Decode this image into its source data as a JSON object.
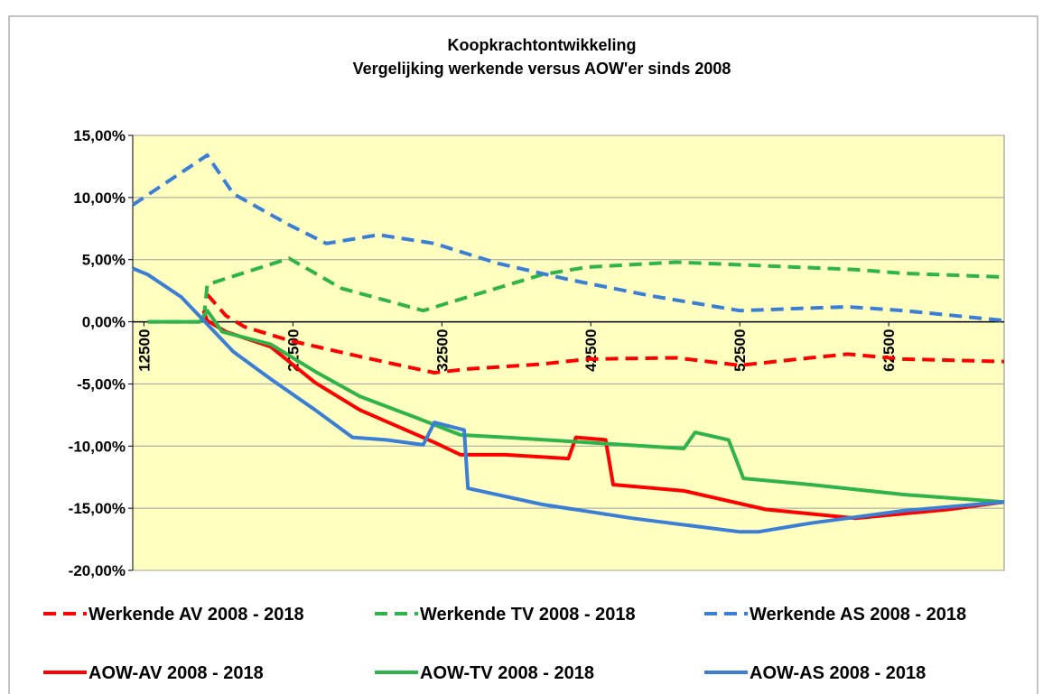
{
  "chart_data": {
    "type": "line",
    "title": "Koopkrachtontwikkeling",
    "subtitle": "Vergelijking werkende versus AOW'er sinds 2008",
    "xlim": [
      11750,
      70250
    ],
    "xticks": [
      12500,
      22500,
      32500,
      42500,
      52500,
      62500
    ],
    "ylim": [
      -20,
      15
    ],
    "yticks": [
      {
        "value": 15,
        "label": "15,00%"
      },
      {
        "value": 10,
        "label": "10,00%"
      },
      {
        "value": 5,
        "label": "5,00%"
      },
      {
        "value": 0,
        "label": "0,00%"
      },
      {
        "value": -5,
        "label": "-5,00%"
      },
      {
        "value": -10,
        "label": "-10,00%"
      },
      {
        "value": -15,
        "label": "-15,00%"
      },
      {
        "value": -20,
        "label": "-20,00%"
      }
    ],
    "grid": true,
    "legend": "bottom",
    "series": [
      {
        "name": "Werkende AV 2008 - 2018",
        "color": "#ff0000",
        "linestyle": "dashed",
        "x": [
          16750,
          18000,
          19250,
          22250,
          27000,
          32000,
          34250,
          39250,
          42250,
          48250,
          52500,
          57250,
          59750,
          63500,
          70250
        ],
        "values": [
          2.2,
          0.5,
          -0.4,
          -1.5,
          -2.8,
          -4.1,
          -3.8,
          -3.4,
          -3.0,
          -2.9,
          -3.5,
          -2.9,
          -2.6,
          -3.0,
          -3.2
        ]
      },
      {
        "name": "Werkende TV 2008 - 2018",
        "color": "#2fb44c",
        "linestyle": "dashed",
        "x": [
          12750,
          16500,
          16750,
          22250,
          25750,
          31250,
          34250,
          39250,
          42250,
          48250,
          54250,
          60250,
          63500,
          70250
        ],
        "values": [
          0,
          0,
          3.0,
          5.1,
          2.7,
          0.9,
          2.0,
          3.8,
          4.4,
          4.8,
          4.5,
          4.2,
          3.9,
          3.6
        ]
      },
      {
        "name": "Werkende AS 2008 - 2018",
        "color": "#3a7fd5",
        "linestyle": "dashed",
        "x": [
          11750,
          16750,
          18500,
          22250,
          24750,
          28250,
          32000,
          36250,
          41000,
          46500,
          52500,
          57250,
          59750,
          63500,
          70250
        ],
        "values": [
          9.4,
          13.4,
          10.3,
          7.8,
          6.3,
          7.0,
          6.3,
          4.7,
          3.4,
          2.1,
          0.9,
          1.1,
          1.2,
          0.9,
          0.1
        ]
      },
      {
        "name": "AOW-AV 2008 - 2018",
        "color": "#ff0000",
        "linestyle": "solid",
        "x": [
          16500,
          16750,
          18000,
          21000,
          24000,
          27000,
          32000,
          33750,
          36750,
          41000,
          41500,
          43500,
          44000,
          48750,
          54250,
          60250,
          66500,
          70250
        ],
        "values": [
          0.9,
          0.1,
          -0.8,
          -2.0,
          -4.9,
          -7.1,
          -9.7,
          -10.7,
          -10.7,
          -11.0,
          -9.3,
          -9.5,
          -13.1,
          -13.6,
          -15.1,
          -15.8,
          -15.1,
          -14.5
        ]
      },
      {
        "name": "AOW-TV 2008 - 2018",
        "color": "#2fb44c",
        "linestyle": "solid",
        "x": [
          12750,
          16250,
          16750,
          17750,
          21000,
          24000,
          27000,
          30750,
          33750,
          36750,
          42250,
          48750,
          49500,
          51750,
          52750,
          57250,
          63500,
          70250
        ],
        "values": [
          0,
          0,
          0.9,
          -0.8,
          -1.8,
          -4.0,
          -6.0,
          -7.7,
          -9.1,
          -9.3,
          -9.7,
          -10.2,
          -8.9,
          -9.5,
          -12.6,
          -13.1,
          -13.9,
          -14.5
        ]
      },
      {
        "name": "AOW-AS 2008 - 2018",
        "color": "#3a7fd5",
        "linestyle": "solid",
        "x": [
          11750,
          12750,
          15000,
          16750,
          18500,
          21000,
          24000,
          26500,
          28750,
          31250,
          32000,
          34000,
          34250,
          39250,
          45250,
          52500,
          53750,
          57250,
          63500,
          70250
        ],
        "values": [
          4.3,
          3.8,
          2.0,
          -0.2,
          -2.4,
          -4.6,
          -7.1,
          -9.3,
          -9.5,
          -9.9,
          -8.1,
          -8.7,
          -13.4,
          -14.7,
          -15.8,
          -16.9,
          -16.9,
          -16.2,
          -15.2,
          -14.5
        ]
      }
    ]
  }
}
